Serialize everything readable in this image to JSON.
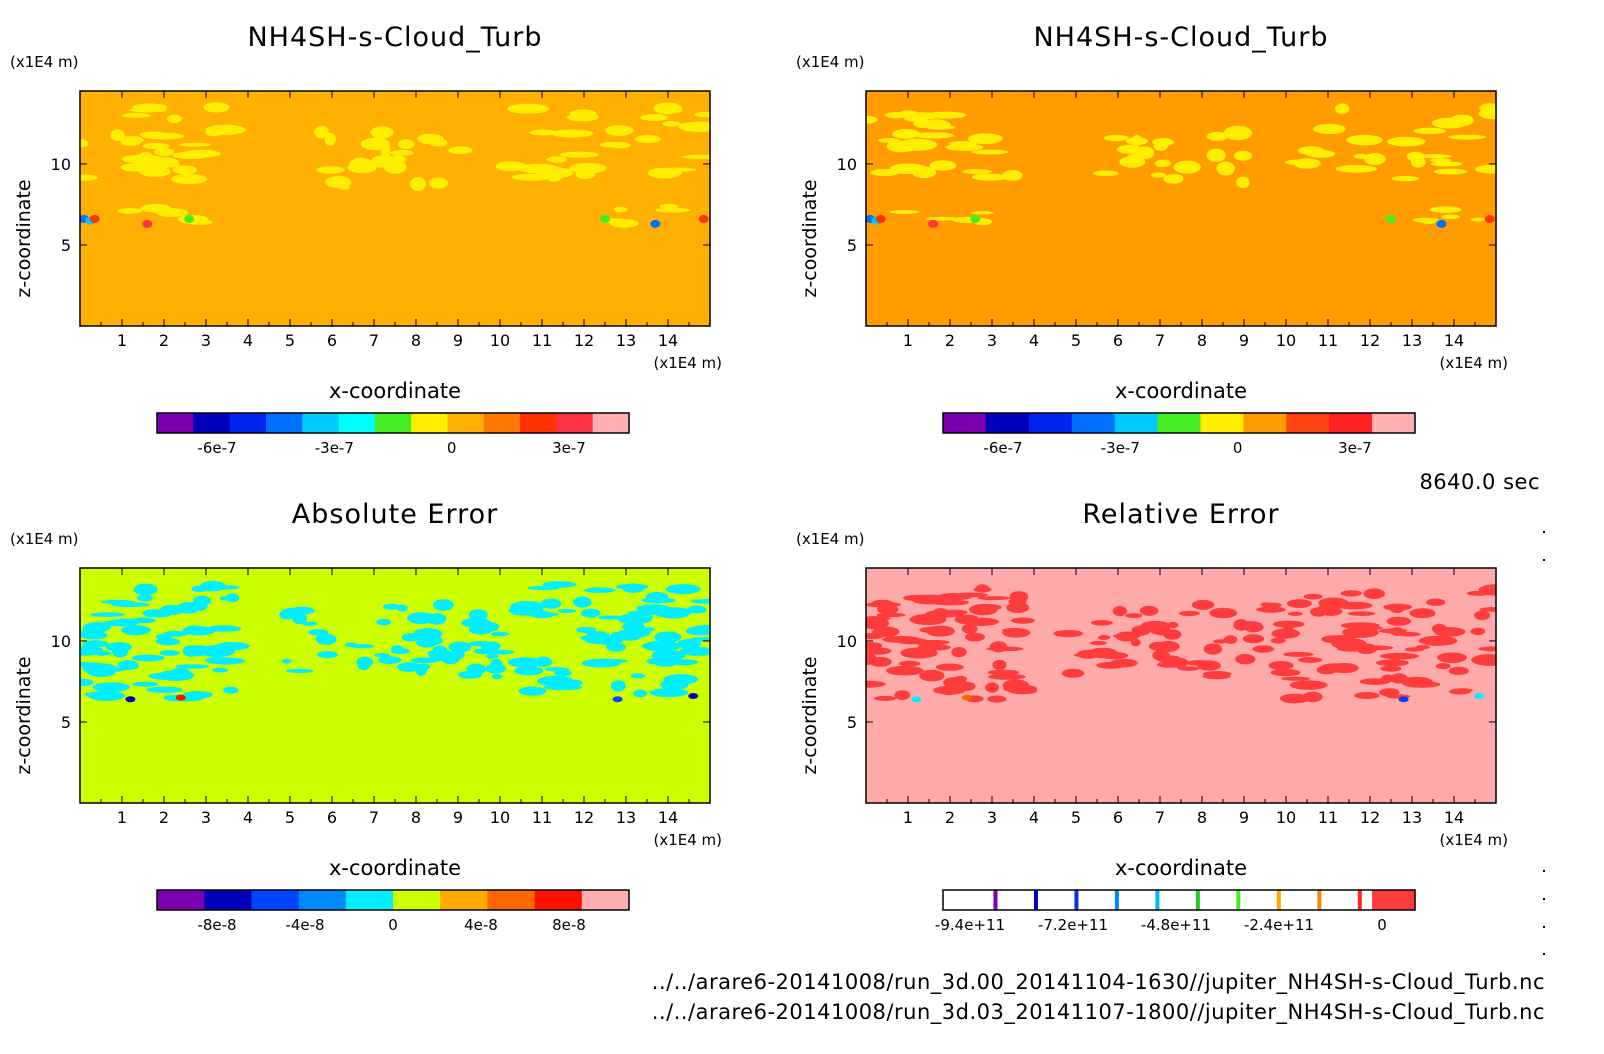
{
  "timestamp": "8640.0 sec",
  "footer": {
    "line1": "../../arare6-20141008/run_3d.00_20141104-1630//jupiter_NH4SH-s-Cloud_Turb.nc",
    "line2": "../../arare6-20141008/run_3d.03_20141107-1800//jupiter_NH4SH-s-Cloud_Turb.nc"
  },
  "chart_data": [
    {
      "type": "heatmap",
      "title": "NH4SH-s-Cloud_Turb",
      "xlabel": "x-coordinate",
      "ylabel": "z-coordinate",
      "x_unit": "(x1E4 m)",
      "y_unit": "(x1E4 m)",
      "xlim": [
        0,
        15
      ],
      "ylim": [
        0,
        14.5
      ],
      "xticks": [
        "1",
        "2",
        "3",
        "4",
        "5",
        "6",
        "7",
        "8",
        "9",
        "10",
        "11",
        "12",
        "13",
        "14"
      ],
      "yticks": [
        "5",
        "10"
      ],
      "background_color": "#ffb000",
      "pattern": "cloud",
      "pattern_color": "#ffee00",
      "colorbar": {
        "colors": [
          "#7a00b0",
          "#0000b8",
          "#0022ee",
          "#0070ff",
          "#00c8ff",
          "#00ffff",
          "#44ee22",
          "#ffee00",
          "#ffb000",
          "#ff7700",
          "#ff3300",
          "#ff3344",
          "#ffb0b0"
        ],
        "tick_labels": [
          "-6e-7",
          "-3e-7",
          "0",
          "3e-7"
        ]
      }
    },
    {
      "type": "heatmap",
      "title": "NH4SH-s-Cloud_Turb",
      "xlabel": "x-coordinate",
      "ylabel": "z-coordinate",
      "x_unit": "(x1E4 m)",
      "y_unit": "(x1E4 m)",
      "xlim": [
        0,
        15
      ],
      "ylim": [
        0,
        14.5
      ],
      "xticks": [
        "1",
        "2",
        "3",
        "4",
        "5",
        "6",
        "7",
        "8",
        "9",
        "10",
        "11",
        "12",
        "13",
        "14"
      ],
      "yticks": [
        "5",
        "10"
      ],
      "background_color": "#ff9d00",
      "pattern": "cloud",
      "pattern_color": "#ffee00",
      "colorbar": {
        "colors": [
          "#7a00b0",
          "#0000b8",
          "#0022ee",
          "#0070ff",
          "#00c8ff",
          "#44ee22",
          "#ffee00",
          "#ff9d00",
          "#ff4411",
          "#ff2222",
          "#ffb0b0"
        ],
        "tick_labels": [
          "-6e-7",
          "-3e-7",
          "0",
          "3e-7"
        ]
      }
    },
    {
      "type": "heatmap",
      "title": "Absolute Error",
      "xlabel": "x-coordinate",
      "ylabel": "z-coordinate",
      "x_unit": "(x1E4 m)",
      "y_unit": "(x1E4 m)",
      "xlim": [
        0,
        15
      ],
      "ylim": [
        0,
        14.5
      ],
      "xticks": [
        "1",
        "2",
        "3",
        "4",
        "5",
        "6",
        "7",
        "8",
        "9",
        "10",
        "11",
        "12",
        "13",
        "14"
      ],
      "yticks": [
        "5",
        "10"
      ],
      "background_color": "#ccff00",
      "pattern": "error",
      "pattern_color": "#00eeff",
      "colorbar": {
        "colors": [
          "#7a00b0",
          "#0000b8",
          "#0044ff",
          "#0088ff",
          "#00eeff",
          "#ccff00",
          "#ffaa00",
          "#ff6600",
          "#ff1100",
          "#ffb0b0"
        ],
        "tick_labels": [
          "-8e-8",
          "-4e-8",
          "0",
          "4e-8",
          "8e-8"
        ]
      }
    },
    {
      "type": "heatmap",
      "title": "Relative Error",
      "xlabel": "x-coordinate",
      "ylabel": "z-coordinate",
      "x_unit": "(x1E4 m)",
      "y_unit": "(x1E4 m)",
      "xlim": [
        0,
        15
      ],
      "ylim": [
        0,
        14.5
      ],
      "xticks": [
        "1",
        "2",
        "3",
        "4",
        "5",
        "6",
        "7",
        "8",
        "9",
        "10",
        "11",
        "12",
        "13",
        "14"
      ],
      "yticks": [
        "5",
        "10"
      ],
      "background_color": "#ffaaaa",
      "pattern": "error",
      "pattern_color": "#ff3c3c",
      "colorbar": {
        "colors": [
          "#ffffff",
          "#ffffff",
          "#ffffff",
          "#ffffff",
          "#ffffff",
          "#ffffff",
          "#ffffff",
          "#ffffff",
          "#ffffff",
          "#ffffff",
          "#ff3c3c"
        ],
        "line_colors": [
          "#7a00b0",
          "#0000cc",
          "#0033ee",
          "#0088ff",
          "#00bbff",
          "#22cc22",
          "#44ee22",
          "#ffaa00",
          "#ff8800",
          "#ff2222"
        ],
        "tick_labels": [
          "-9.4e+11",
          "-7.2e+11",
          "-4.8e+11",
          "-2.4e+11",
          "0"
        ]
      }
    }
  ]
}
